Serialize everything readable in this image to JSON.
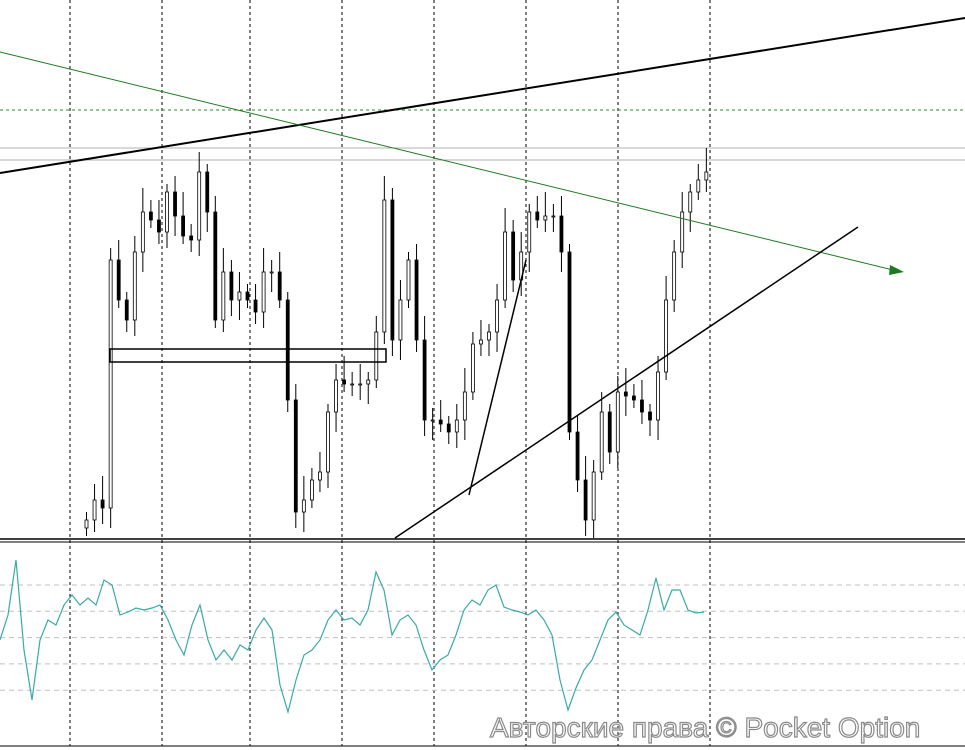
{
  "chart_data": [
    {
      "type": "candlestick",
      "panel": "price",
      "grid": "vertical dashed",
      "closes": [
        5,
        10,
        8,
        70,
        60,
        55,
        72,
        82,
        80,
        77,
        87,
        81,
        76,
        75,
        92,
        82,
        55,
        67,
        60,
        62,
        60,
        57,
        67,
        67,
        60,
        35,
        7,
        10,
        15,
        17,
        32,
        40,
        39,
        39,
        39,
        40,
        52,
        85,
        50,
        60,
        70,
        50,
        30,
        30,
        29,
        27,
        30,
        37,
        49,
        50,
        52,
        60,
        77,
        65,
        72,
        82,
        80,
        81,
        81,
        72,
        27,
        15,
        5,
        17,
        32,
        22,
        37,
        36,
        35,
        32,
        30,
        42,
        60,
        72,
        82,
        87,
        90,
        92
      ],
      "colors": {
        "up_body": "#ffffff",
        "down_body": "#000000",
        "outline": "#000000"
      }
    },
    {
      "type": "line",
      "panel": "oscillator",
      "values": [
        80,
        105,
        160,
        70,
        20,
        80,
        100,
        95,
        115,
        125,
        115,
        122,
        115,
        140,
        135,
        105,
        108,
        112,
        110,
        112,
        115,
        100,
        80,
        65,
        95,
        115,
        80,
        60,
        70,
        60,
        75,
        70,
        90,
        102,
        90,
        35,
        8,
        40,
        65,
        70,
        80,
        100,
        110,
        100,
        102,
        95,
        110,
        148,
        130,
        85,
        100,
        105,
        95,
        70,
        50,
        60,
        65,
        85,
        110,
        120,
        115,
        130,
        135,
        113,
        110,
        108,
        105,
        110,
        100,
        85,
        40,
        10,
        32,
        50,
        60,
        80,
        100,
        108,
        95,
        90,
        85,
        110,
        142,
        110,
        130,
        130,
        110,
        107,
        108
      ],
      "levels_dashed": 5,
      "color": "#3aa9a9"
    }
  ],
  "watermark": "Авторские права © Pocket Option",
  "colors": {
    "trendline": "#000000",
    "green_line": "#1e7a1e",
    "level_dashed": "#2e8b2e",
    "level_gray": "#b0b0b0"
  }
}
